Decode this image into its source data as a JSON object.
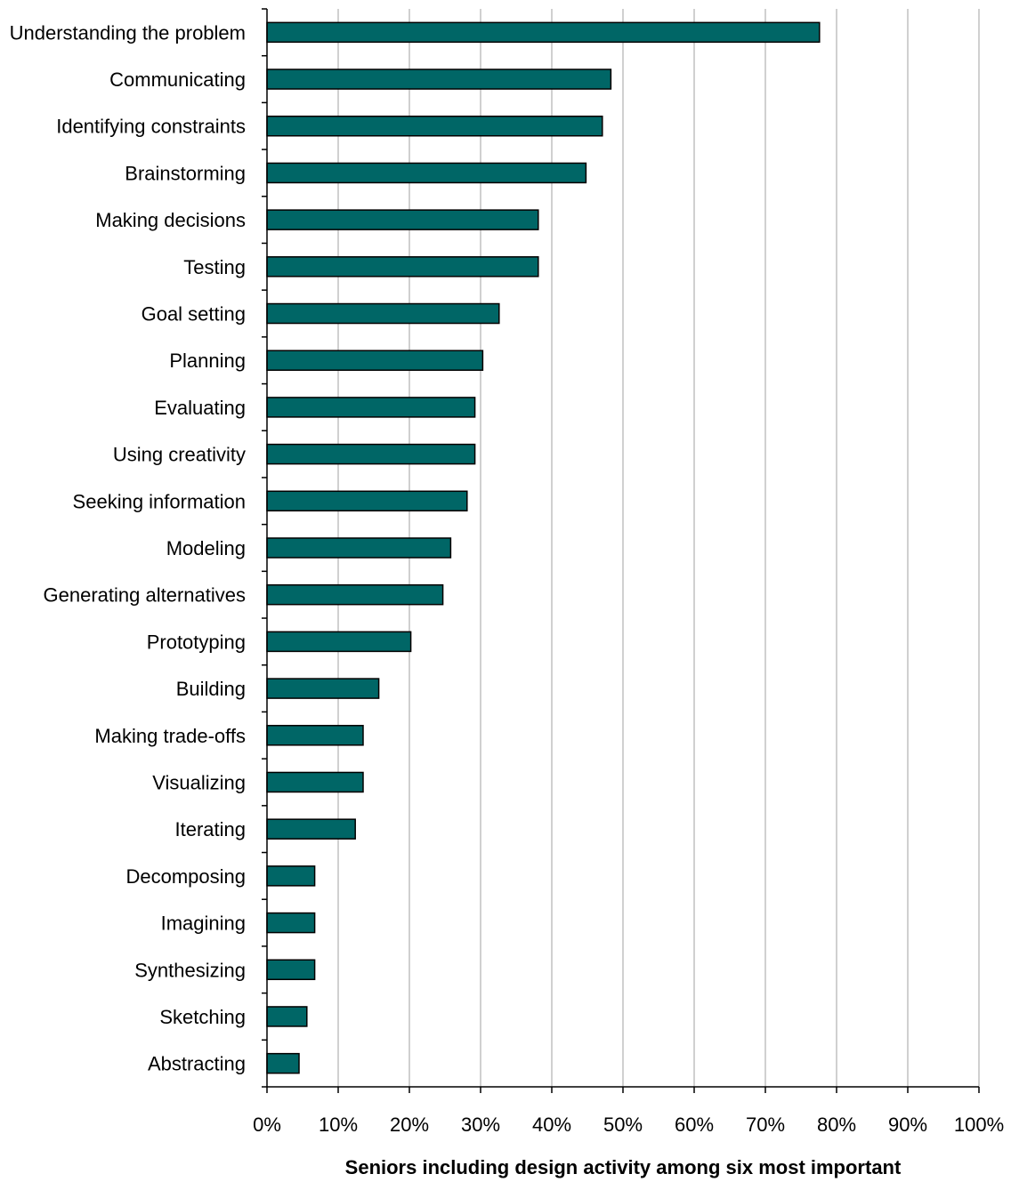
{
  "chart_data": {
    "type": "bar",
    "orientation": "horizontal",
    "categories": [
      "Understanding the problem",
      "Communicating",
      "Identifying constraints",
      "Brainstorming",
      "Making decisions",
      "Testing",
      "Goal setting",
      "Planning",
      "Evaluating",
      "Using creativity",
      "Seeking information",
      "Modeling",
      "Generating alternatives",
      "Prototyping",
      "Building",
      "Making trade-offs",
      "Visualizing",
      "Iterating",
      "Decomposing",
      "Imagining",
      "Synthesizing",
      "Sketching",
      "Abstracting"
    ],
    "values": [
      77.6,
      48.3,
      47.1,
      44.8,
      38.1,
      38.1,
      32.6,
      30.3,
      29.2,
      29.2,
      28.1,
      25.8,
      24.7,
      20.2,
      15.7,
      13.5,
      13.5,
      12.4,
      6.7,
      6.7,
      6.7,
      5.6,
      4.5
    ],
    "xlim": [
      0,
      100
    ],
    "xticks": [
      0,
      10,
      20,
      30,
      40,
      50,
      60,
      70,
      80,
      90,
      100
    ],
    "tick_labels": [
      "0%",
      "10%",
      "20%",
      "30%",
      "40%",
      "50%",
      "60%",
      "70%",
      "80%",
      "90%",
      "100%"
    ],
    "xlabel": "Seniors including design activity among six most important",
    "grid": "vertical",
    "bar_color": "#006666",
    "bar_edge_color": "#000000",
    "grid_color": "#c0c0c0"
  }
}
